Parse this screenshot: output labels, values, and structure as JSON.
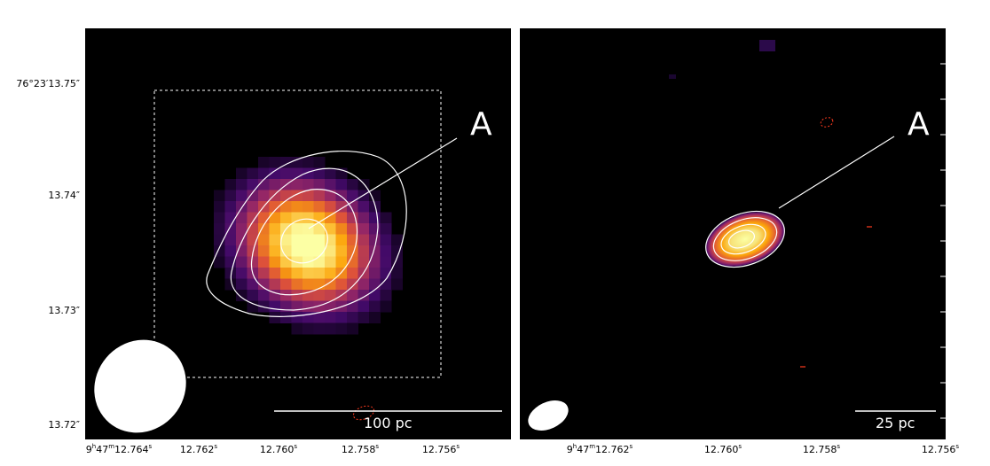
{
  "left_panel": {
    "source_label": "A",
    "scale_bar_label": "100 pc",
    "y_ticks": [
      "76°23′13.75″",
      "13.74″",
      "13.73″",
      "13.72″"
    ],
    "x_ticks": [
      {
        "h": "9",
        "m": "47",
        "sec": "12.764"
      },
      {
        "sec": "12.762"
      },
      {
        "sec": "12.760"
      },
      {
        "sec": "12.758"
      },
      {
        "sec": "12.756"
      }
    ]
  },
  "right_panel": {
    "source_label": "A",
    "scale_bar_label": "25 pc",
    "x_ticks": [
      {
        "h": "9",
        "m": "47",
        "sec": "12.762"
      },
      {
        "sec": "12.760"
      },
      {
        "sec": "12.758"
      },
      {
        "sec": "12.756"
      }
    ]
  },
  "colors": {
    "background": "#000000",
    "contour": "#ffffff",
    "negative_contour": "#ff3b1f",
    "colormap": [
      "#000004",
      "#420a68",
      "#932667",
      "#dd513a",
      "#fca50a",
      "#fcffa4"
    ]
  }
}
